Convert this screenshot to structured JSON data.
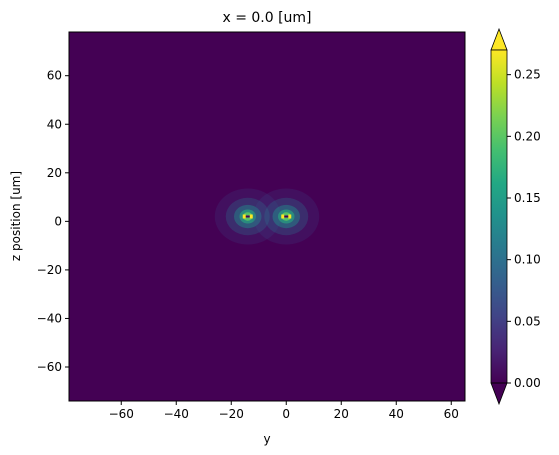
{
  "chart_data": {
    "type": "heatmap",
    "title": "x = 0.0 [um]",
    "xlabel": "y",
    "ylabel": "z position [um]",
    "xlim": [
      -79,
      65
    ],
    "ylim": [
      -74,
      78
    ],
    "x_ticks": [
      -60,
      -40,
      -20,
      0,
      20,
      40,
      60
    ],
    "y_ticks": [
      -60,
      -40,
      -20,
      0,
      20,
      40,
      60
    ],
    "x_tick_labels": [
      "−60",
      "−40",
      "−20",
      "0",
      "20",
      "40",
      "60"
    ],
    "y_tick_labels": [
      "−60",
      "−40",
      "−20",
      "0",
      "20",
      "40",
      "60"
    ],
    "colorbar": {
      "min": 0.0,
      "max": 0.27,
      "extend": "both",
      "colormap": "viridis",
      "ticks": [
        0.0,
        0.05,
        0.1,
        0.15,
        0.2,
        0.25
      ],
      "tick_labels": [
        "0.00",
        "0.05",
        "0.10",
        "0.15",
        "0.20",
        "0.25"
      ]
    },
    "hotspots": [
      {
        "y": -14,
        "z": 2,
        "peak": 0.27
      },
      {
        "y": 0,
        "z": 2,
        "peak": 0.27
      }
    ],
    "background_level": 0.0
  }
}
